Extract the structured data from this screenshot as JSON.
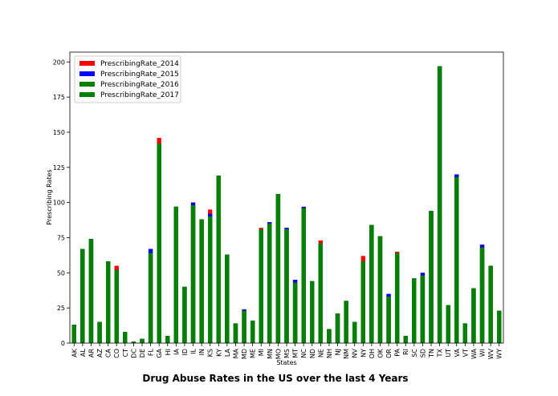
{
  "chart_data": {
    "type": "bar",
    "mode": "overlaid",
    "title": "Drug Abuse Rates in the US over the last 4 Years",
    "x_label": "States",
    "y_label": "Prescribing Rates",
    "categories": [
      "AK",
      "AL",
      "AR",
      "AZ",
      "CA",
      "CO",
      "CT",
      "DC",
      "DE",
      "FL",
      "GA",
      "HI",
      "IA",
      "ID",
      "IL",
      "IN",
      "KS",
      "KY",
      "LA",
      "MA",
      "MD",
      "ME",
      "MI",
      "MN",
      "MO",
      "MS",
      "MT",
      "NC",
      "ND",
      "NE",
      "NH",
      "NJ",
      "NM",
      "NV",
      "NY",
      "OH",
      "OK",
      "OR",
      "PA",
      "RI",
      "SC",
      "SD",
      "TN",
      "TX",
      "UT",
      "VA",
      "VT",
      "WA",
      "WI",
      "WV",
      "WY"
    ],
    "series": [
      {
        "name": "PrescribingRate_2014",
        "color": "#ff0000",
        "values": [
          13,
          67,
          74,
          15,
          58,
          55,
          8,
          1,
          3,
          67,
          146,
          5,
          97,
          40,
          100,
          88,
          95,
          119,
          63,
          14,
          24,
          16,
          82,
          86,
          106,
          82,
          45,
          97,
          44,
          73,
          10,
          21,
          30,
          15,
          62,
          84,
          76,
          35,
          65,
          5,
          46,
          50,
          94,
          197,
          27,
          120,
          14,
          39,
          70,
          55,
          23
        ]
      },
      {
        "name": "PrescribingRate_2015",
        "color": "#0000ff",
        "values": [
          13,
          67,
          74,
          15,
          58,
          52,
          8,
          1,
          3,
          67,
          142,
          5,
          97,
          40,
          100,
          88,
          92,
          119,
          63,
          14,
          24,
          16,
          81,
          86,
          106,
          82,
          45,
          97,
          44,
          71,
          10,
          21,
          30,
          15,
          58,
          84,
          76,
          35,
          64,
          5,
          46,
          50,
          94,
          197,
          27,
          120,
          14,
          39,
          70,
          55,
          23
        ]
      },
      {
        "name": "PrescribingRate_2016",
        "color": "#008000",
        "values": [
          13,
          67,
          74,
          15,
          58,
          52,
          8,
          1,
          3,
          64,
          142,
          5,
          97,
          40,
          98,
          88,
          90,
          119,
          63,
          14,
          23,
          16,
          81,
          85,
          106,
          81,
          43,
          96,
          44,
          71,
          10,
          21,
          30,
          15,
          58,
          84,
          76,
          33,
          64,
          5,
          46,
          48,
          94,
          197,
          27,
          118,
          14,
          39,
          68,
          55,
          23
        ]
      },
      {
        "name": "PrescribingRate_2017",
        "color": "#008000",
        "values": [
          13,
          67,
          74,
          15,
          58,
          52,
          8,
          1,
          3,
          64,
          142,
          5,
          97,
          40,
          98,
          88,
          90,
          119,
          63,
          14,
          23,
          16,
          81,
          85,
          106,
          81,
          43,
          96,
          44,
          71,
          10,
          21,
          30,
          15,
          58,
          84,
          76,
          33,
          64,
          5,
          46,
          48,
          94,
          197,
          27,
          118,
          14,
          39,
          68,
          55,
          23
        ]
      }
    ],
    "ylim": [
      0,
      207
    ],
    "yticks": [
      0,
      25,
      50,
      75,
      100,
      125,
      150,
      175,
      200
    ],
    "legend": "upper left"
  }
}
